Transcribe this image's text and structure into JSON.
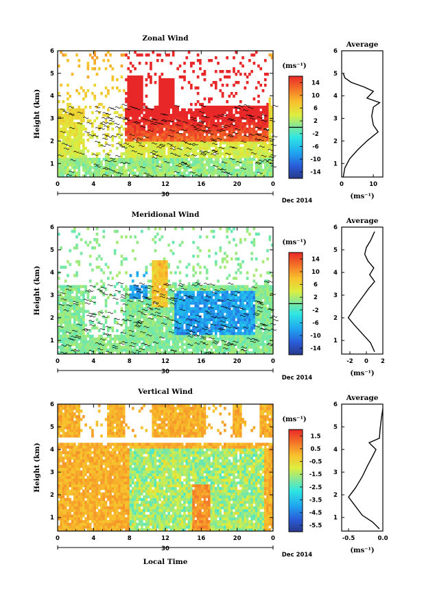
{
  "chart_data": [
    {
      "type": "heatmap",
      "title": "Zonal Wind",
      "ylabel": "Height (km)",
      "ylim": [
        0.4,
        6.0
      ],
      "yticks": [
        "1",
        "2",
        "3",
        "4",
        "5",
        "6"
      ],
      "xlim": [
        0,
        24
      ],
      "xticks": [
        "0",
        "4",
        "8",
        "12",
        "16",
        "20",
        "0"
      ],
      "day_label": "30",
      "month_label": "Dec 2014",
      "colorbar_unit": "(ms⁻¹)",
      "colorbar_ticks": [
        "14",
        "10",
        "6",
        "2",
        "-2",
        "-6",
        "-10",
        "-14"
      ],
      "colorbar_range": [
        -16,
        16
      ],
      "zero_contour": true,
      "profile": {
        "title": "Average",
        "xticks": [
          "0",
          "10"
        ],
        "xlim": [
          0,
          13
        ],
        "xlabel": "(ms⁻¹)",
        "yticks": [
          "1",
          "2",
          "3",
          "4",
          "5",
          "6"
        ],
        "points": [
          [
            0.5,
            0.4
          ],
          [
            1,
            0.8
          ],
          [
            2.5,
            1.2
          ],
          [
            5,
            1.6
          ],
          [
            8,
            2.0
          ],
          [
            11.5,
            2.4
          ],
          [
            10,
            2.7
          ],
          [
            9.5,
            3.1
          ],
          [
            10,
            3.5
          ],
          [
            12,
            3.7
          ],
          [
            8,
            3.9
          ],
          [
            10,
            4.2
          ],
          [
            7,
            4.4
          ],
          [
            3,
            4.6
          ],
          [
            1,
            4.8
          ],
          [
            0.5,
            5.0
          ]
        ]
      }
    },
    {
      "type": "heatmap",
      "title": "Meridional Wind",
      "ylabel": "Height (km)",
      "ylim": [
        0.4,
        6.0
      ],
      "yticks": [
        "1",
        "2",
        "3",
        "4",
        "5",
        "6"
      ],
      "xlim": [
        0,
        24
      ],
      "xticks": [
        "0",
        "4",
        "8",
        "12",
        "16",
        "20",
        "0"
      ],
      "day_label": "30",
      "month_label": "Dec 2014",
      "colorbar_unit": "(ms⁻¹)",
      "colorbar_ticks": [
        "14",
        "10",
        "6",
        "2",
        "-2",
        "-6",
        "-10",
        "-14"
      ],
      "colorbar_range": [
        -16,
        16
      ],
      "zero_contour": true,
      "profile": {
        "title": "Average",
        "xticks": [
          "-2",
          "0",
          "2"
        ],
        "xlim": [
          -3,
          2
        ],
        "xlabel": "(ms⁻¹)",
        "yticks": [
          "1",
          "2",
          "3",
          "4",
          "5",
          "6"
        ],
        "points": [
          [
            1,
            0.5
          ],
          [
            0.5,
            0.9
          ],
          [
            -0.5,
            1.3
          ],
          [
            -1.5,
            1.7
          ],
          [
            -2.2,
            2.0
          ],
          [
            -1.5,
            2.4
          ],
          [
            -0.5,
            2.9
          ],
          [
            0.3,
            3.3
          ],
          [
            1,
            3.6
          ],
          [
            0.4,
            3.9
          ],
          [
            0.9,
            4.2
          ],
          [
            0.2,
            4.5
          ],
          [
            -0.2,
            4.8
          ],
          [
            0,
            5.1
          ],
          [
            0.5,
            5.4
          ],
          [
            1,
            5.8
          ]
        ]
      }
    },
    {
      "type": "heatmap",
      "title": "Vertical Wind",
      "ylabel": "Height (km)",
      "xlabel": "Local Time",
      "ylim": [
        0.4,
        6.0
      ],
      "yticks": [
        "1",
        "2",
        "3",
        "4",
        "5",
        "6"
      ],
      "xlim": [
        0,
        24
      ],
      "xticks": [
        "0",
        "4",
        "8",
        "12",
        "16",
        "20",
        "0"
      ],
      "day_label": "30",
      "month_label": "Dec 2014",
      "colorbar_unit": "(ms⁻¹)",
      "colorbar_ticks": [
        "1.5",
        "0.5",
        "-0.5",
        "-1.5",
        "-2.5",
        "-3.5",
        "-4.5",
        "-5.5"
      ],
      "colorbar_range": [
        -6,
        2
      ],
      "zero_contour": false,
      "profile": {
        "title": "Average",
        "xticks": [
          "-0.5",
          "0.0"
        ],
        "xlim": [
          -0.6,
          0.0
        ],
        "xlabel": "(ms⁻¹)",
        "yticks": [
          "1",
          "2",
          "3",
          "4",
          "5",
          "6"
        ],
        "points": [
          [
            -0.05,
            0.5
          ],
          [
            -0.15,
            0.8
          ],
          [
            -0.3,
            1.1
          ],
          [
            -0.4,
            1.5
          ],
          [
            -0.5,
            1.9
          ],
          [
            -0.4,
            2.3
          ],
          [
            -0.3,
            2.8
          ],
          [
            -0.22,
            3.3
          ],
          [
            -0.15,
            3.7
          ],
          [
            -0.1,
            4.0
          ],
          [
            -0.2,
            4.3
          ],
          [
            -0.05,
            4.5
          ],
          [
            -0.04,
            4.9
          ],
          [
            -0.02,
            5.4
          ],
          [
            0.0,
            5.8
          ]
        ]
      }
    }
  ]
}
